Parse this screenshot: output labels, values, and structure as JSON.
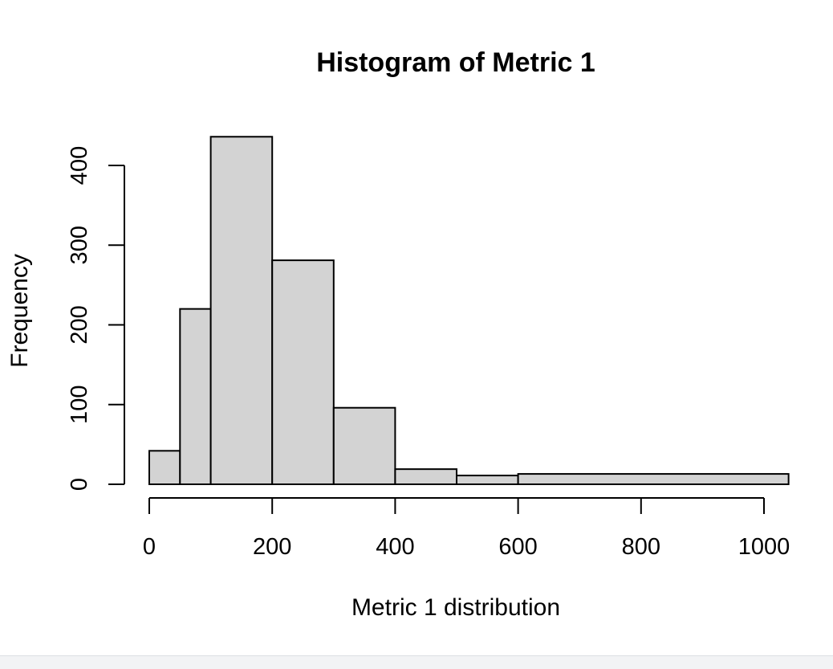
{
  "chart_data": {
    "type": "bar",
    "title": "Histogram of Metric 1",
    "xlabel": "Metric 1 distribution",
    "ylabel": "Frequency",
    "xlim": [
      0,
      1040
    ],
    "ylim": [
      0,
      400
    ],
    "x_ticks": [
      0,
      200,
      400,
      600,
      800,
      1000
    ],
    "y_ticks": [
      0,
      100,
      200,
      300,
      400
    ],
    "bins": [
      {
        "start": 0,
        "end": 50,
        "count": 42
      },
      {
        "start": 50,
        "end": 100,
        "count": 220
      },
      {
        "start": 100,
        "end": 200,
        "count": 436
      },
      {
        "start": 200,
        "end": 300,
        "count": 281
      },
      {
        "start": 300,
        "end": 400,
        "count": 96
      },
      {
        "start": 400,
        "end": 500,
        "count": 19
      },
      {
        "start": 500,
        "end": 600,
        "count": 11
      },
      {
        "start": 600,
        "end": 1040,
        "count": 13
      }
    ],
    "bar_fill": "#d3d3d3",
    "bar_stroke": "#000000",
    "grid": false,
    "legend": "none"
  }
}
